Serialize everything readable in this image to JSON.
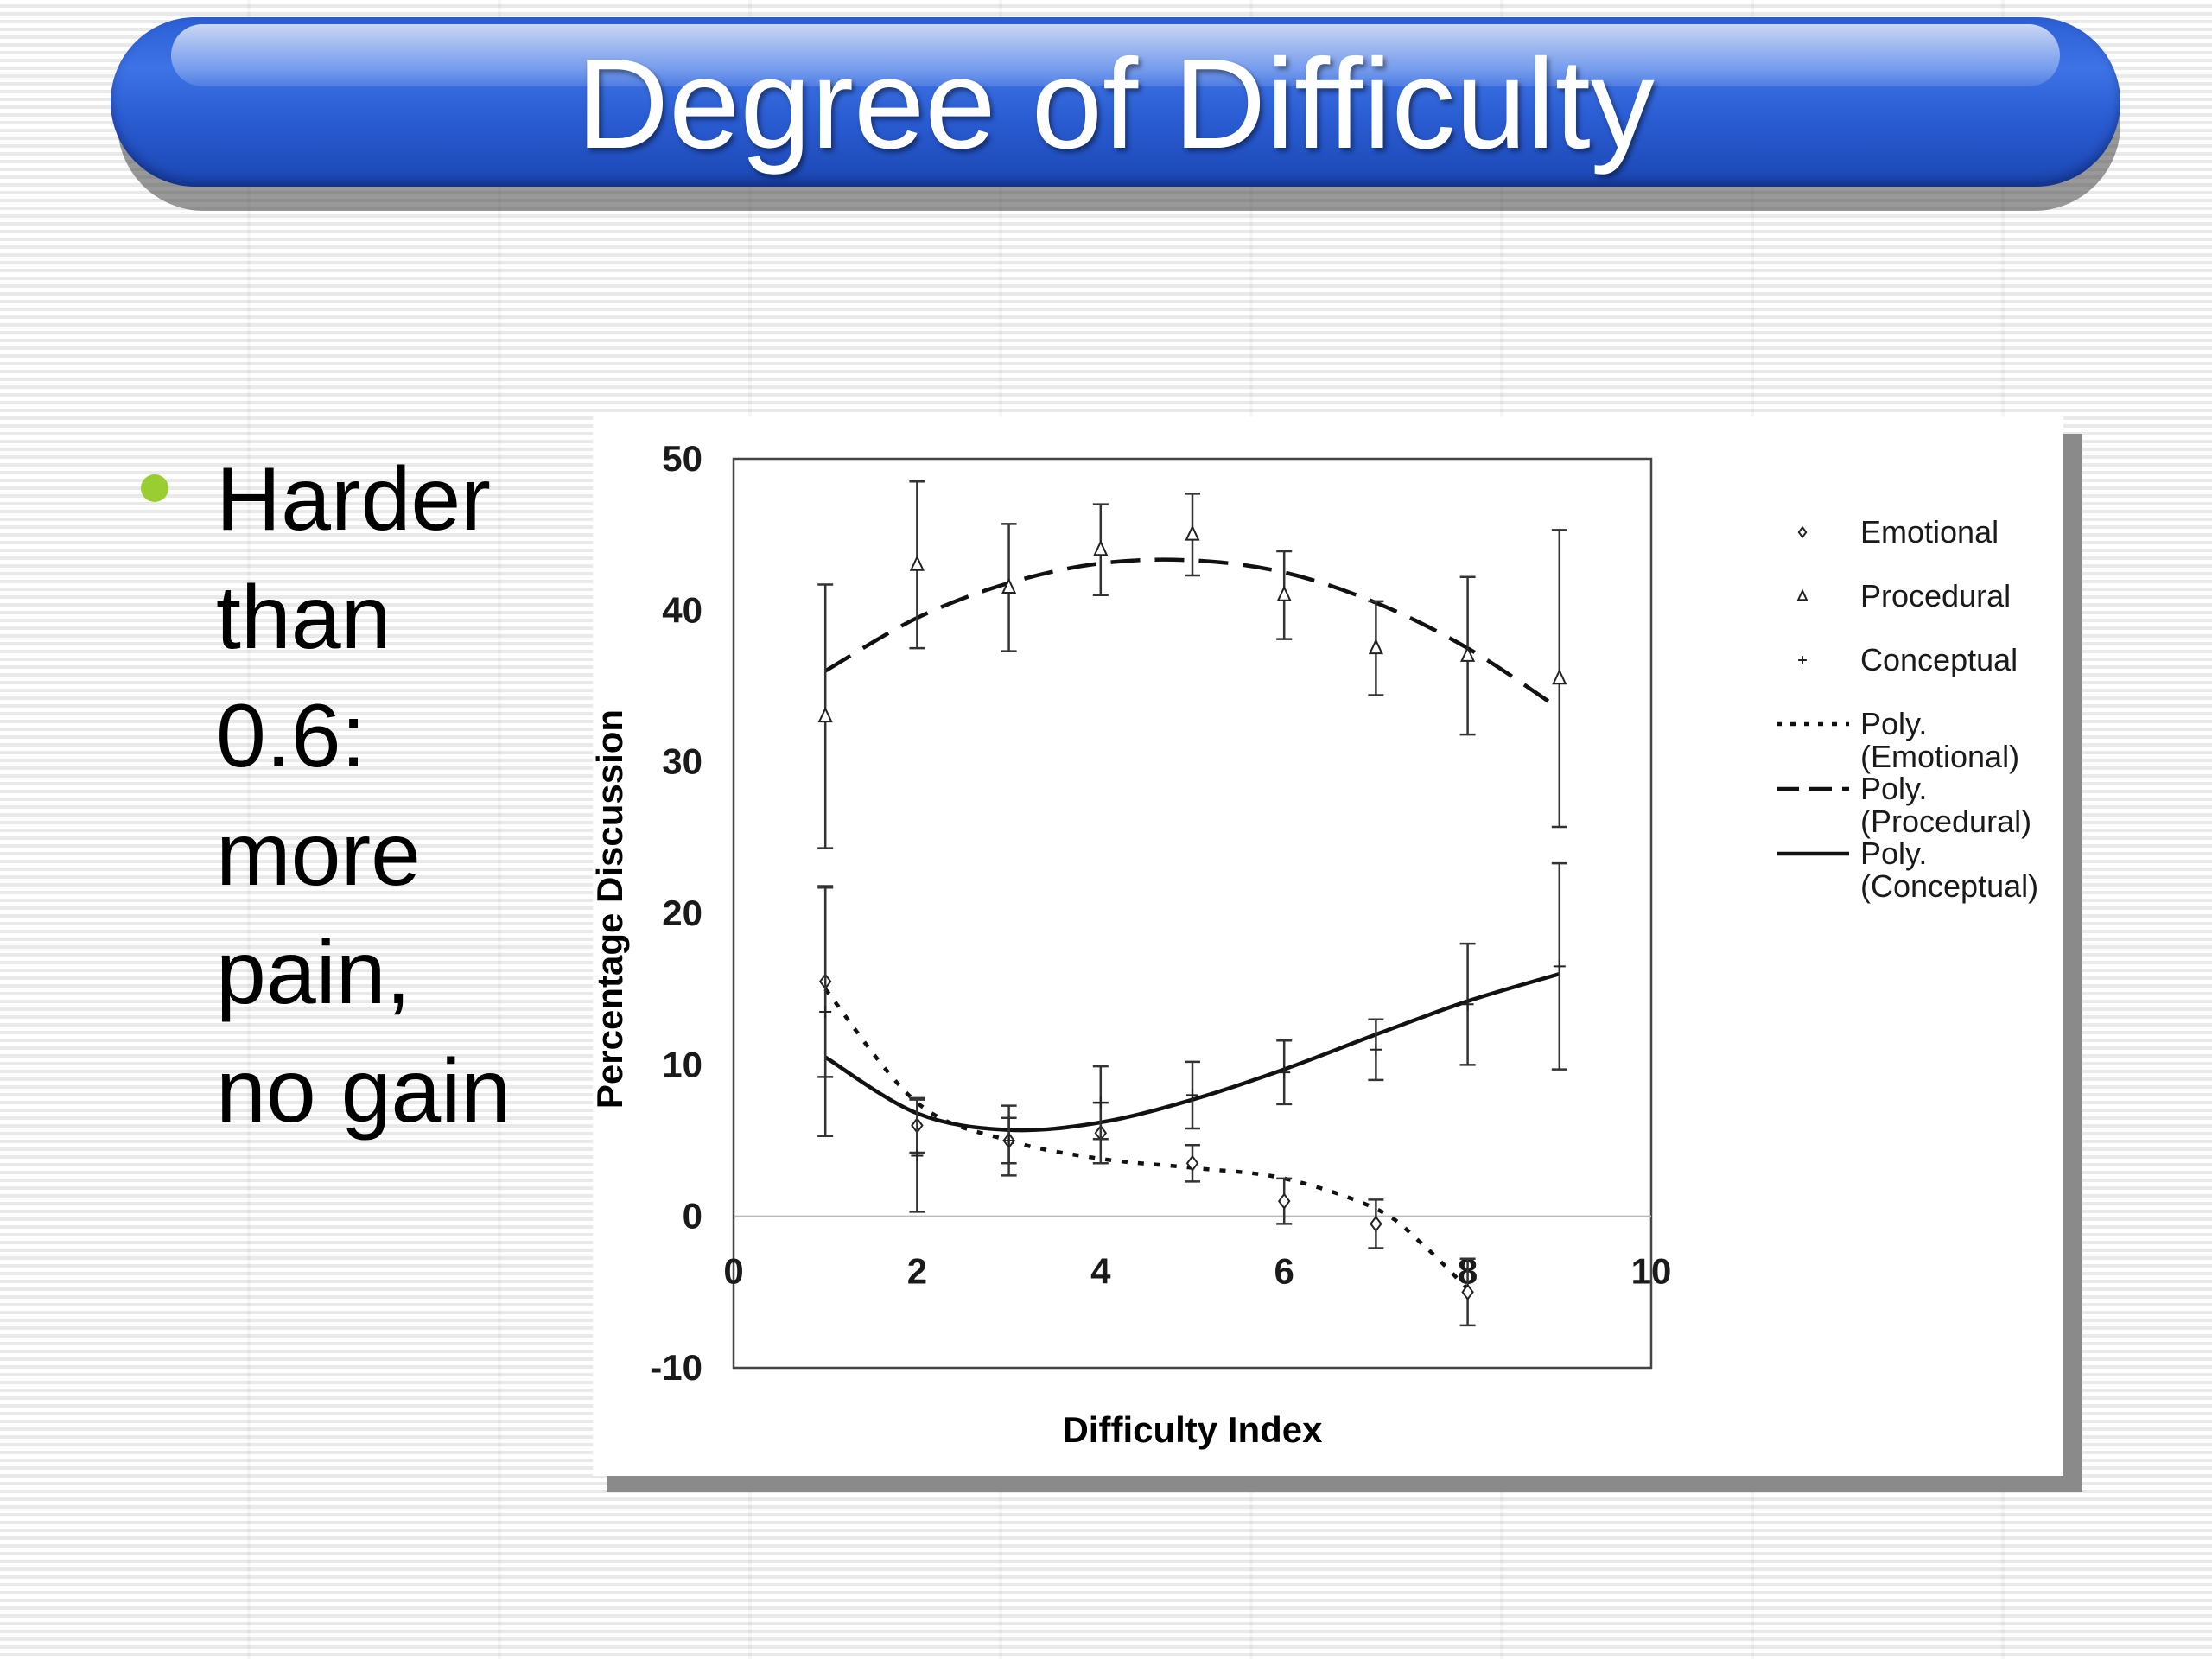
{
  "slide": {
    "title": "Degree of Difficulty",
    "bullet_lines": [
      "Harder",
      "than",
      "0.6:",
      "more",
      "pain,",
      "no gain"
    ],
    "bullet_color": "#9acd32",
    "title_bar_color": "#2c5fd6"
  },
  "chart_data": {
    "type": "scatter",
    "title": "",
    "xlabel": "Difficulty Index",
    "ylabel": "Percentage Discussion",
    "xlim": [
      0,
      10
    ],
    "ylim": [
      -10,
      50
    ],
    "x_ticks": [
      "0",
      "2",
      "4",
      "6",
      "8",
      "10"
    ],
    "y_ticks": [
      "-10",
      "0",
      "10",
      "20",
      "30",
      "40",
      "50"
    ],
    "x_axis_crosses_at": 0,
    "grid": false,
    "legend_position": "right",
    "series": [
      {
        "name": "Emotional",
        "marker": "diamond",
        "x": [
          1,
          2,
          3,
          4,
          5,
          6,
          7,
          8
        ],
        "y": [
          15.5,
          6,
          5,
          5.5,
          3.5,
          1,
          -0.5,
          -5
        ],
        "error": [
          6.3,
          1.8,
          1.5,
          2,
          1.2,
          1.5,
          1.6,
          2.2
        ]
      },
      {
        "name": "Procedural",
        "marker": "triangle",
        "x": [
          1,
          2,
          3,
          4,
          5,
          6,
          7,
          8,
          9
        ],
        "y": [
          33,
          43,
          41.5,
          44,
          45,
          41,
          37.5,
          37,
          35.5
        ],
        "error": [
          8.7,
          5.5,
          4.2,
          3,
          2.7,
          2.9,
          3.1,
          5.2,
          9.8
        ]
      },
      {
        "name": "Conceptual",
        "marker": "plus",
        "x": [
          1,
          2,
          3,
          4,
          5,
          6,
          7,
          8,
          9
        ],
        "y": [
          13.5,
          4,
          5,
          7.5,
          8,
          9.5,
          11,
          14,
          16.5
        ],
        "error": [
          8.2,
          3.7,
          2.3,
          2.4,
          2.2,
          2.1,
          2,
          4,
          6.8
        ]
      },
      {
        "name": "Poly. (Emotional)",
        "line_style": "dotted",
        "x": [
          1,
          2,
          3,
          4,
          5,
          6,
          7,
          7.5,
          8
        ],
        "y": [
          15,
          7.5,
          5,
          3.8,
          3.2,
          2.5,
          0.5,
          -1.8,
          -4.8
        ]
      },
      {
        "name": "Poly. (Procedural)",
        "line_style": "dashed",
        "x": [
          1,
          2,
          3,
          4,
          5,
          6,
          7,
          8,
          9
        ],
        "y": [
          36,
          39.5,
          41.8,
          43.1,
          43.3,
          42.5,
          40.5,
          37.5,
          33.5
        ]
      },
      {
        "name": "Poly. (Conceptual)",
        "line_style": "solid",
        "x": [
          1,
          2,
          3,
          4,
          5,
          6,
          7,
          8,
          9
        ],
        "y": [
          10.5,
          6.8,
          5.7,
          6.2,
          7.7,
          9.7,
          12,
          14.2,
          16
        ]
      }
    ],
    "legend": [
      {
        "label": "Emotional",
        "symbol": "diamond"
      },
      {
        "label": "Procedural",
        "symbol": "triangle"
      },
      {
        "label": "Conceptual",
        "symbol": "plus"
      },
      {
        "label": [
          "Poly.",
          "(Emotional)"
        ],
        "symbol": "dotted"
      },
      {
        "label": [
          "Poly.",
          "(Procedural)"
        ],
        "symbol": "dashed"
      },
      {
        "label": [
          "Poly.",
          "(Conceptual)"
        ],
        "symbol": "solid"
      }
    ]
  }
}
